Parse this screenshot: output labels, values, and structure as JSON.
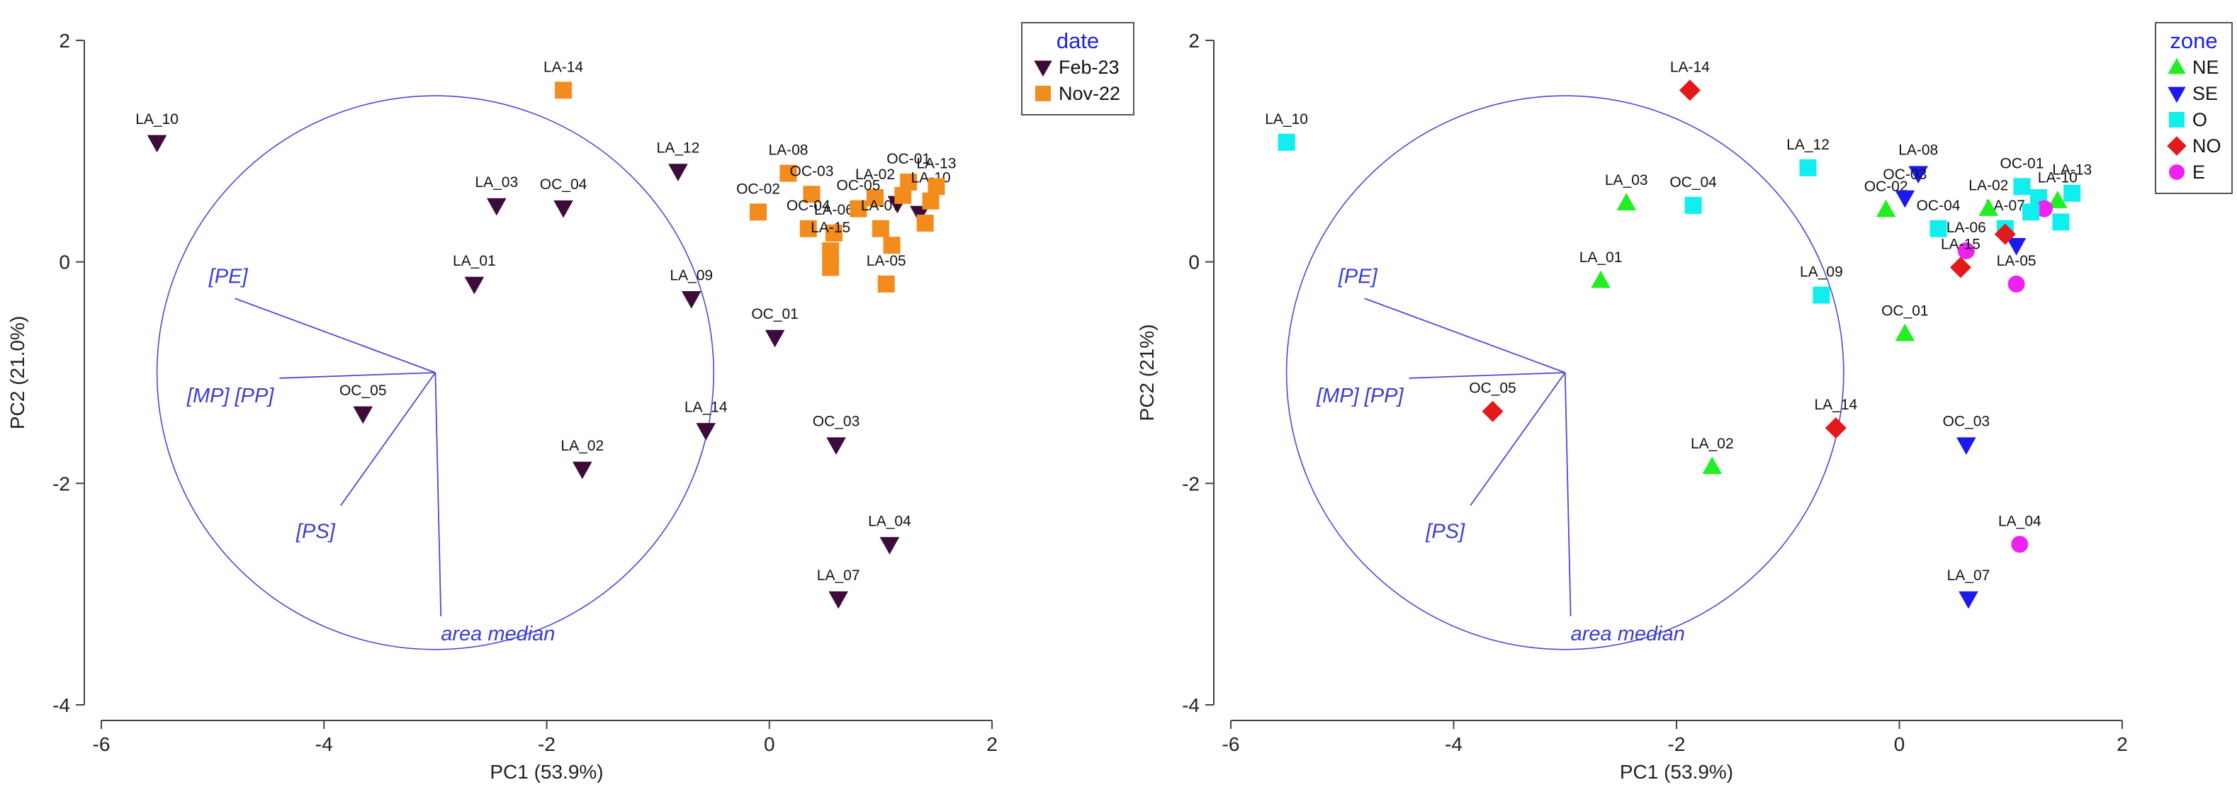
{
  "chart_data": [
    {
      "type": "scatter",
      "subtype": "pca-biplot",
      "xlabel": "PC1 (53.9%)",
      "ylabel": "PC2 (21.0%)",
      "xlim": [
        -6,
        2
      ],
      "ylim": [
        -4,
        2
      ],
      "xticks": [
        "-6",
        "-4",
        "-2",
        "0",
        "2"
      ],
      "yticks": [
        "2",
        "0",
        "-2",
        "-4"
      ],
      "legend": {
        "title": "date",
        "position": "top-right",
        "entries": [
          {
            "key": "Feb-23",
            "label": "Feb-23",
            "shape": "triangle-down",
            "color": "#3d0a3b"
          },
          {
            "key": "Nov-22",
            "label": "Nov-22",
            "shape": "square",
            "color": "#f28c1c"
          }
        ]
      },
      "correlation_circle": {
        "center": [
          -3.0,
          -1.0
        ],
        "radius": 2.5
      },
      "variables": [
        {
          "label": "[PE]",
          "end": [
            -4.8,
            -0.33
          ]
        },
        {
          "label": "[MP] [PP]",
          "end": [
            -4.4,
            -1.05
          ]
        },
        {
          "label": "[PS]",
          "end": [
            -3.85,
            -2.2
          ]
        },
        {
          "label": "area median",
          "end": [
            -2.95,
            -3.2
          ]
        }
      ],
      "points": [
        {
          "label": "LA_10",
          "x": -5.5,
          "y": 1.08,
          "group": "Feb-23"
        },
        {
          "label": "LA_03",
          "x": -2.45,
          "y": 0.51,
          "group": "Feb-23"
        },
        {
          "label": "OC_04",
          "x": -1.85,
          "y": 0.49,
          "group": "Feb-23"
        },
        {
          "label": "LA_01",
          "x": -2.65,
          "y": -0.2,
          "group": "Feb-23"
        },
        {
          "label": "LA_12",
          "x": -0.82,
          "y": 0.82,
          "group": "Feb-23"
        },
        {
          "label": "LA_09",
          "x": -0.7,
          "y": -0.33,
          "group": "Feb-23"
        },
        {
          "label": "OC_01",
          "x": 0.05,
          "y": -0.68,
          "group": "Feb-23"
        },
        {
          "label": "OC_05",
          "x": -3.65,
          "y": -1.37,
          "group": "Feb-23"
        },
        {
          "label": "LA_02",
          "x": -1.68,
          "y": -1.87,
          "group": "Feb-23"
        },
        {
          "label": "LA_14",
          "x": -0.57,
          "y": -1.52,
          "group": "Feb-23"
        },
        {
          "label": "OC_03",
          "x": 0.6,
          "y": -1.65,
          "group": "Feb-23"
        },
        {
          "label": "LA_04",
          "x": 1.08,
          "y": -2.55,
          "group": "Feb-23"
        },
        {
          "label": "LA_07",
          "x": 0.62,
          "y": -3.04,
          "group": "Feb-23"
        },
        {
          "label": "",
          "x": 1.35,
          "y": 0.44,
          "group": "Feb-23"
        },
        {
          "label": "",
          "x": 1.15,
          "y": 0.53,
          "group": "Feb-23"
        },
        {
          "label": "LA-14",
          "x": -1.85,
          "y": 1.55,
          "group": "Nov-22"
        },
        {
          "label": "LA-08",
          "x": 0.17,
          "y": 0.8,
          "group": "Nov-22"
        },
        {
          "label": "OC-03",
          "x": 0.38,
          "y": 0.61,
          "group": "Nov-22"
        },
        {
          "label": "OC-02",
          "x": -0.1,
          "y": 0.45,
          "group": "Nov-22"
        },
        {
          "label": "OC-04",
          "x": 0.35,
          "y": 0.3,
          "group": "Nov-22"
        },
        {
          "label": "LA-06",
          "x": 0.58,
          "y": 0.26,
          "group": "Nov-22"
        },
        {
          "label": "LA-15",
          "x": 0.55,
          "y": 0.1,
          "group": "Nov-22"
        },
        {
          "label": "",
          "x": 0.55,
          "y": -0.05,
          "group": "Nov-22"
        },
        {
          "label": "LA-05",
          "x": 1.05,
          "y": -0.2,
          "group": "Nov-22"
        },
        {
          "label": "LA-02",
          "x": 0.95,
          "y": 0.58,
          "group": "Nov-22"
        },
        {
          "label": "OC-05",
          "x": 0.8,
          "y": 0.48,
          "group": "Nov-22"
        },
        {
          "label": "LA-07",
          "x": 1.0,
          "y": 0.3,
          "group": "Nov-22"
        },
        {
          "label": "OC-01",
          "x": 1.25,
          "y": 0.72,
          "group": "Nov-22"
        },
        {
          "label": "LA-10",
          "x": 1.45,
          "y": 0.55,
          "group": "Nov-22"
        },
        {
          "label": "LA-13",
          "x": 1.5,
          "y": 0.68,
          "group": "Nov-22"
        },
        {
          "label": "",
          "x": 1.2,
          "y": 0.6,
          "group": "Nov-22"
        },
        {
          "label": "",
          "x": 1.4,
          "y": 0.35,
          "group": "Nov-22"
        },
        {
          "label": "",
          "x": 1.1,
          "y": 0.15,
          "group": "Nov-22"
        }
      ]
    },
    {
      "type": "scatter",
      "subtype": "pca-biplot",
      "xlabel": "PC1 (53.9%)",
      "ylabel": "PC2 (21%)",
      "xlim": [
        -6,
        2
      ],
      "ylim": [
        -4,
        2
      ],
      "xticks": [
        "-6",
        "-4",
        "-2",
        "0",
        "2"
      ],
      "yticks": [
        "2",
        "0",
        "-2",
        "-4"
      ],
      "legend": {
        "title": "zone",
        "position": "top-right",
        "entries": [
          {
            "key": "NE",
            "label": "NE",
            "shape": "triangle-up",
            "color": "#22ee22"
          },
          {
            "key": "SE",
            "label": "SE",
            "shape": "triangle-down",
            "color": "#1a1aee"
          },
          {
            "key": "O",
            "label": "O",
            "shape": "square",
            "color": "#11eeee"
          },
          {
            "key": "NO",
            "label": "NO",
            "shape": "diamond",
            "color": "#e41a1a"
          },
          {
            "key": "E",
            "label": "E",
            "shape": "circle",
            "color": "#ee22ee"
          }
        ]
      },
      "correlation_circle": {
        "center": [
          -3.0,
          -1.0
        ],
        "radius": 2.5
      },
      "variables": [
        {
          "label": "[PE]",
          "end": [
            -4.8,
            -0.33
          ]
        },
        {
          "label": "[MP] [PP]",
          "end": [
            -4.4,
            -1.05
          ]
        },
        {
          "label": "[PS]",
          "end": [
            -3.85,
            -2.2
          ]
        },
        {
          "label": "area median",
          "end": [
            -2.95,
            -3.2
          ]
        }
      ],
      "points": [
        {
          "label": "LA_10",
          "x": -5.5,
          "y": 1.08,
          "group": "O"
        },
        {
          "label": "LA-14",
          "x": -1.88,
          "y": 1.55,
          "group": "NO"
        },
        {
          "label": "LA_03",
          "x": -2.45,
          "y": 0.53,
          "group": "NE"
        },
        {
          "label": "OC_04",
          "x": -1.85,
          "y": 0.51,
          "group": "O"
        },
        {
          "label": "LA_12",
          "x": -0.82,
          "y": 0.85,
          "group": "O"
        },
        {
          "label": "LA-08",
          "x": 0.17,
          "y": 0.8,
          "group": "SE"
        },
        {
          "label": "OC-02",
          "x": -0.12,
          "y": 0.47,
          "group": "NE"
        },
        {
          "label": "OC-03",
          "x": 0.05,
          "y": 0.58,
          "group": "SE"
        },
        {
          "label": "LA_01",
          "x": -2.68,
          "y": -0.17,
          "group": "NE"
        },
        {
          "label": "LA_09",
          "x": -0.7,
          "y": -0.3,
          "group": "O"
        },
        {
          "label": "OC_01",
          "x": 0.05,
          "y": -0.65,
          "group": "NE"
        },
        {
          "label": "OC-04",
          "x": 0.35,
          "y": 0.3,
          "group": "O"
        },
        {
          "label": "LA-06",
          "x": 0.6,
          "y": 0.1,
          "group": "E"
        },
        {
          "label": "LA-15",
          "x": 0.55,
          "y": -0.05,
          "group": "NO"
        },
        {
          "label": "LA-05",
          "x": 1.05,
          "y": -0.2,
          "group": "E"
        },
        {
          "label": "LA-07",
          "x": 0.95,
          "y": 0.3,
          "group": "O"
        },
        {
          "label": "LA-02",
          "x": 0.8,
          "y": 0.48,
          "group": "NE"
        },
        {
          "label": "OC-01",
          "x": 1.1,
          "y": 0.68,
          "group": "O"
        },
        {
          "label": "LA-10",
          "x": 1.42,
          "y": 0.55,
          "group": "NE"
        },
        {
          "label": "LA-13",
          "x": 1.55,
          "y": 0.62,
          "group": "O"
        },
        {
          "label": "",
          "x": 1.25,
          "y": 0.58,
          "group": "O"
        },
        {
          "label": "",
          "x": 1.3,
          "y": 0.48,
          "group": "E"
        },
        {
          "label": "",
          "x": 1.05,
          "y": 0.15,
          "group": "SE"
        },
        {
          "label": "",
          "x": 1.45,
          "y": 0.36,
          "group": "O"
        },
        {
          "label": "",
          "x": 0.95,
          "y": 0.25,
          "group": "NO"
        },
        {
          "label": "",
          "x": 1.18,
          "y": 0.45,
          "group": "O"
        },
        {
          "label": "OC_05",
          "x": -3.65,
          "y": -1.35,
          "group": "NO"
        },
        {
          "label": "LA_02",
          "x": -1.68,
          "y": -1.85,
          "group": "NE"
        },
        {
          "label": "LA_14",
          "x": -0.57,
          "y": -1.5,
          "group": "NO"
        },
        {
          "label": "OC_03",
          "x": 0.6,
          "y": -1.65,
          "group": "SE"
        },
        {
          "label": "LA_04",
          "x": 1.08,
          "y": -2.55,
          "group": "E"
        },
        {
          "label": "LA_07",
          "x": 0.62,
          "y": -3.04,
          "group": "SE"
        }
      ]
    }
  ]
}
